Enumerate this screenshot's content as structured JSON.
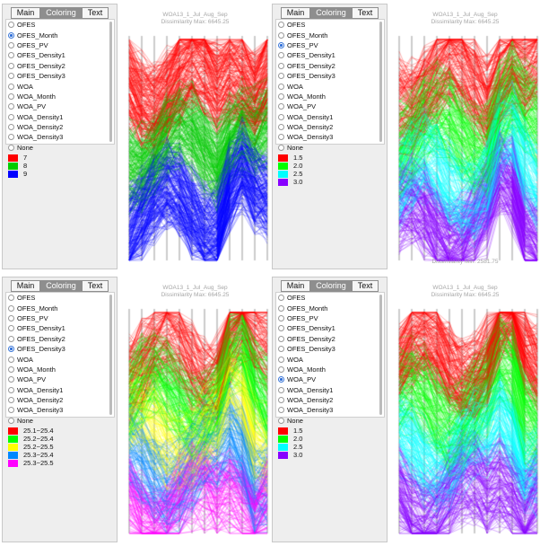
{
  "tabs": [
    "Main",
    "Coloring",
    "Text"
  ],
  "options": [
    "OFES",
    "OFES_Month",
    "OFES_PV",
    "OFES_Density1",
    "OFES_Density2",
    "OFES_Density3",
    "WOA",
    "WOA_Month",
    "WOA_PV",
    "WOA_Density1",
    "WOA_Density2",
    "WOA_Density3",
    "None"
  ],
  "plot_title": "WOA13_1_Jul_Aug_Sep",
  "plot_subtitle": "Dissimilarity Max: 6645.25",
  "panels": [
    {
      "selected": 1,
      "legend": [
        {
          "label": "7",
          "color": "#ff0000"
        },
        {
          "label": "8",
          "color": "#00cc00"
        },
        {
          "label": "9",
          "color": "#0000ff"
        }
      ],
      "colors": [
        "#ff0000",
        "#00cc00",
        "#0000ff"
      ],
      "footer": ""
    },
    {
      "selected": 2,
      "legend": [
        {
          "label": "1.5",
          "color": "#ff0000"
        },
        {
          "label": "2.0",
          "color": "#00ff00"
        },
        {
          "label": "2.5",
          "color": "#00ffff"
        },
        {
          "label": "3.0",
          "color": "#8800ff"
        }
      ],
      "colors": [
        "#ff0000",
        "#00ff00",
        "#00ffff",
        "#8800ff"
      ],
      "footer": "Dissimilarity Min: 2581.75"
    },
    {
      "selected": 5,
      "legend": [
        {
          "label": "25.1~25.4",
          "color": "#ff0000"
        },
        {
          "label": "25.2~25.4",
          "color": "#00ff00"
        },
        {
          "label": "25.2~25.5",
          "color": "#ffff00"
        },
        {
          "label": "25.3~25.4",
          "color": "#0088ff"
        },
        {
          "label": "25.3~25.5",
          "color": "#ff00ff"
        }
      ],
      "colors": [
        "#ff0000",
        "#00ff00",
        "#ffff00",
        "#0088ff",
        "#ff00ff"
      ],
      "footer": ""
    },
    {
      "selected": 8,
      "legend": [
        {
          "label": "1.5",
          "color": "#ff0000"
        },
        {
          "label": "2.0",
          "color": "#00ff00"
        },
        {
          "label": "2.5",
          "color": "#00ffff"
        },
        {
          "label": "3.0",
          "color": "#8800ff"
        }
      ],
      "colors": [
        "#ff0000",
        "#00ff00",
        "#00ffff",
        "#8800ff"
      ],
      "footer": ""
    }
  ],
  "icons": {
    "radio_selected": "radio-selected-icon",
    "radio_unselected": "radio-unselected-icon"
  }
}
